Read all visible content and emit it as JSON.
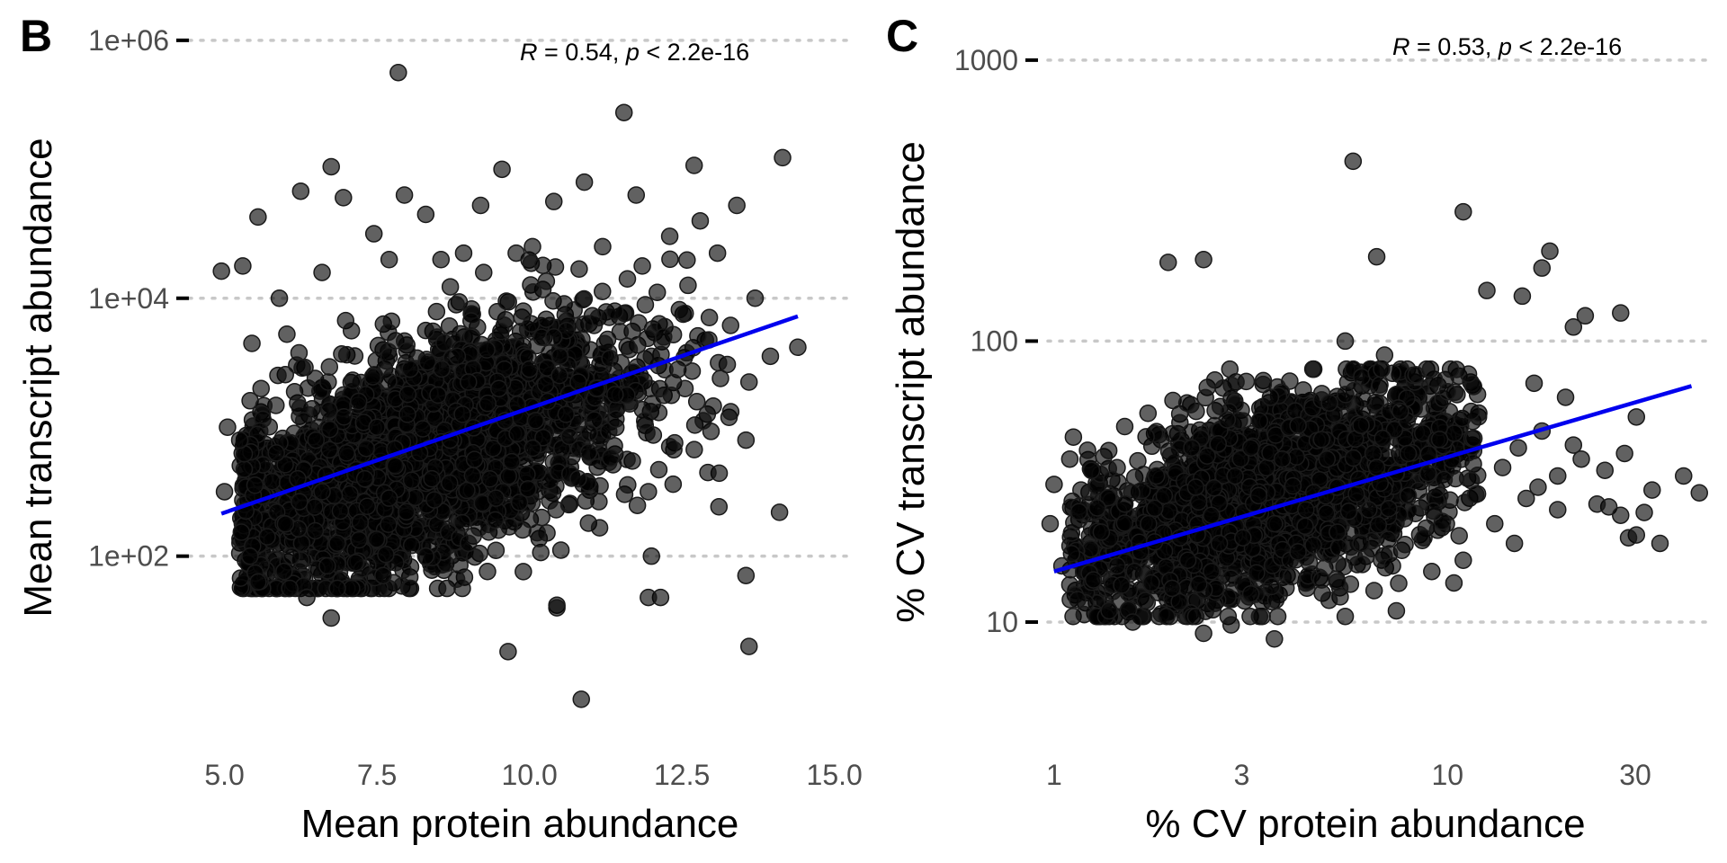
{
  "chart_data": [
    {
      "type": "scatter",
      "panel_tag": "B",
      "title": "",
      "xlabel": "Mean protein abundance",
      "ylabel": "Mean transcript abundance",
      "x_scale": "linear",
      "y_scale": "log10",
      "xlim": [
        4.8,
        15.3
      ],
      "ylim_log10": [
        0.75,
        6.25
      ],
      "x_ticks": [
        5.0,
        7.5,
        10.0,
        12.5,
        15.0
      ],
      "x_tick_labels": [
        "5.0",
        "7.5",
        "10.0",
        "12.5",
        "15.0"
      ],
      "y_ticks_log10": [
        2,
        4,
        6
      ],
      "y_tick_labels": [
        "1e+02",
        "1e+04",
        "1e+06"
      ],
      "grid": "horizontal dotted",
      "annotation": {
        "r_label": "R",
        "r_text": " = 0.54, ",
        "p_label": "p",
        "p_text": " < 2.2e-16"
      },
      "fit_line": {
        "x": [
          4.95,
          14.4
        ],
        "y_log10": [
          2.33,
          3.86
        ],
        "color": "#0000ee"
      },
      "core_cloud_note": "dense overplotted core approx x 5.3-13.5, log10 y 1.9-4.2",
      "points": [
        [
          7.85,
          5.75
        ],
        [
          11.55,
          5.44
        ],
        [
          14.15,
          5.09
        ],
        [
          6.75,
          5.02
        ],
        [
          6.25,
          4.83
        ],
        [
          4.95,
          4.21
        ],
        [
          9.55,
          5.0
        ],
        [
          7.95,
          4.8
        ],
        [
          12.7,
          5.03
        ],
        [
          11.75,
          4.8
        ],
        [
          5.55,
          4.63
        ],
        [
          6.95,
          4.78
        ],
        [
          13.4,
          4.72
        ],
        [
          12.8,
          4.6
        ],
        [
          9.2,
          4.72
        ],
        [
          10.4,
          4.75
        ],
        [
          8.3,
          4.65
        ],
        [
          10.9,
          4.9
        ],
        [
          7.45,
          4.5
        ],
        [
          12.3,
          4.48
        ],
        [
          5.3,
          4.25
        ],
        [
          13.7,
          4.0
        ],
        [
          14.4,
          3.62
        ],
        [
          13.95,
          3.55
        ],
        [
          13.6,
          3.35
        ],
        [
          13.3,
          3.12
        ],
        [
          13.55,
          2.9
        ],
        [
          14.1,
          2.34
        ],
        [
          12.0,
          2.0
        ],
        [
          11.15,
          2.22
        ],
        [
          10.45,
          1.62
        ],
        [
          10.45,
          1.6
        ],
        [
          9.9,
          1.88
        ],
        [
          9.65,
          1.26
        ],
        [
          10.85,
          0.89
        ],
        [
          13.6,
          1.3
        ],
        [
          12.15,
          1.68
        ],
        [
          11.95,
          1.68
        ],
        [
          13.55,
          1.85
        ],
        [
          6.75,
          1.52
        ],
        [
          6.35,
          1.68
        ],
        [
          5.55,
          1.8
        ],
        [
          7.15,
          1.95
        ],
        [
          8.05,
          1.75
        ],
        [
          5.0,
          2.5
        ],
        [
          5.25,
          2.9
        ],
        [
          5.05,
          3.0
        ],
        [
          5.6,
          3.3
        ],
        [
          5.45,
          3.65
        ],
        [
          5.9,
          4.0
        ],
        [
          6.6,
          4.2
        ],
        [
          7.7,
          4.3
        ],
        [
          8.55,
          4.3
        ],
        [
          9.25,
          4.2
        ],
        [
          10.05,
          4.4
        ],
        [
          11.2,
          4.4
        ],
        [
          11.85,
          4.25
        ],
        [
          12.6,
          4.1
        ],
        [
          12.95,
          3.85
        ],
        [
          12.2,
          3.7
        ],
        [
          13.1,
          3.5
        ],
        [
          12.55,
          3.3
        ],
        [
          12.85,
          3.05
        ],
        [
          11.6,
          2.75
        ],
        [
          10.8,
          2.6
        ],
        [
          11.95,
          2.5
        ],
        [
          12.3,
          2.85
        ],
        [
          10.2,
          2.3
        ],
        [
          9.45,
          2.45
        ],
        [
          9.0,
          2.1
        ],
        [
          8.3,
          2.0
        ],
        [
          7.6,
          1.85
        ],
        [
          6.85,
          2.1
        ],
        [
          6.0,
          2.25
        ],
        [
          5.5,
          2.55
        ],
        [
          5.85,
          2.8
        ],
        [
          6.3,
          3.05
        ],
        [
          6.7,
          3.35
        ],
        [
          7.2,
          3.2
        ],
        [
          7.7,
          3.55
        ],
        [
          8.3,
          3.75
        ],
        [
          8.8,
          3.95
        ],
        [
          9.3,
          3.6
        ],
        [
          9.9,
          3.9
        ],
        [
          10.4,
          3.7
        ],
        [
          10.9,
          3.8
        ],
        [
          11.4,
          3.9
        ],
        [
          11.9,
          3.95
        ],
        [
          11.1,
          3.3
        ],
        [
          10.6,
          3.1
        ],
        [
          9.8,
          2.95
        ],
        [
          9.1,
          2.75
        ],
        [
          8.4,
          2.6
        ],
        [
          7.7,
          2.45
        ],
        [
          6.9,
          2.35
        ],
        [
          6.2,
          2.6
        ],
        [
          6.5,
          2.9
        ],
        [
          7.0,
          2.8
        ],
        [
          7.5,
          3.0
        ],
        [
          8.0,
          3.1
        ],
        [
          8.5,
          3.25
        ],
        [
          9.0,
          3.35
        ],
        [
          9.5,
          3.3
        ],
        [
          10.0,
          3.45
        ],
        [
          10.5,
          3.55
        ],
        [
          11.0,
          3.6
        ],
        [
          11.5,
          3.5
        ],
        [
          12.0,
          3.55
        ],
        [
          8.7,
          2.9
        ],
        [
          8.2,
          2.8
        ],
        [
          7.8,
          2.7
        ],
        [
          7.3,
          2.6
        ],
        [
          6.6,
          2.5
        ],
        [
          6.1,
          2.0
        ],
        [
          5.7,
          2.15
        ],
        [
          5.35,
          2.35
        ],
        [
          8.9,
          3.1
        ],
        [
          9.6,
          3.05
        ],
        [
          10.3,
          3.2
        ],
        [
          10.8,
          3.35
        ]
      ]
    },
    {
      "type": "scatter",
      "panel_tag": "C",
      "title": "",
      "xlabel": "% CV protein abundance",
      "ylabel": "% CV transcript abundance",
      "x_scale": "log10",
      "y_scale": "log10",
      "xlim_log10": [
        -0.05,
        1.66
      ],
      "ylim_log10": [
        0.6,
        3.15
      ],
      "x_ticks_log10": [
        0,
        0.4771,
        1,
        1.4771
      ],
      "x_tick_labels": [
        "1",
        "3",
        "10",
        "30"
      ],
      "y_ticks_log10": [
        1,
        2,
        3
      ],
      "y_tick_labels": [
        "10",
        "100",
        "1000"
      ],
      "grid": "horizontal dotted",
      "annotation": {
        "r_label": "R",
        "r_text": " = 0.53, ",
        "p_label": "p",
        "p_text": " < 2.2e-16"
      },
      "fit_line": {
        "x_log10": [
          0,
          1.62
        ],
        "y_log10": [
          1.18,
          1.84
        ],
        "color": "#0000ee"
      },
      "core_cloud_note": "dense overplotted core approx log10 x 0.05-1.05, log10 y 1.05-1.85",
      "points": [
        [
          0.76,
          2.64
        ],
        [
          1.04,
          2.46
        ],
        [
          0.82,
          2.3
        ],
        [
          0.29,
          2.28
        ],
        [
          0.38,
          2.29
        ],
        [
          1.26,
          2.32
        ],
        [
          1.24,
          2.26
        ],
        [
          1.1,
          2.18
        ],
        [
          1.35,
          2.09
        ],
        [
          1.44,
          2.1
        ],
        [
          1.32,
          2.05
        ],
        [
          1.19,
          2.16
        ],
        [
          1.22,
          1.85
        ],
        [
          1.3,
          1.8
        ],
        [
          1.48,
          1.73
        ],
        [
          1.6,
          1.52
        ],
        [
          1.64,
          1.46
        ],
        [
          1.52,
          1.47
        ],
        [
          1.5,
          1.39
        ],
        [
          1.41,
          1.41
        ],
        [
          1.48,
          1.31
        ],
        [
          1.54,
          1.28
        ],
        [
          1.46,
          1.3
        ],
        [
          1.44,
          1.38
        ],
        [
          1.38,
          1.42
        ],
        [
          1.4,
          1.54
        ],
        [
          1.45,
          1.6
        ],
        [
          1.34,
          1.58
        ],
        [
          1.28,
          1.52
        ],
        [
          1.23,
          1.48
        ],
        [
          1.32,
          1.63
        ],
        [
          1.24,
          1.68
        ],
        [
          1.18,
          1.62
        ],
        [
          1.14,
          1.55
        ],
        [
          1.2,
          1.44
        ],
        [
          1.28,
          1.4
        ],
        [
          1.12,
          1.35
        ],
        [
          1.17,
          1.28
        ],
        [
          0.0,
          1.49
        ],
        [
          0.04,
          1.58
        ],
        [
          -0.01,
          1.35
        ],
        [
          0.02,
          1.2
        ],
        [
          0.06,
          1.08
        ],
        [
          0.14,
          1.04
        ],
        [
          0.2,
          1.0
        ],
        [
          0.38,
          0.96
        ],
        [
          0.45,
          0.99
        ],
        [
          0.56,
          0.94
        ],
        [
          0.74,
          1.02
        ],
        [
          0.87,
          1.04
        ],
        [
          0.96,
          1.18
        ],
        [
          1.04,
          1.22
        ],
        [
          0.94,
          1.3
        ],
        [
          0.86,
          1.2
        ],
        [
          0.78,
          1.28
        ],
        [
          0.68,
          1.15
        ],
        [
          0.6,
          1.22
        ],
        [
          0.5,
          1.1
        ],
        [
          0.4,
          1.18
        ],
        [
          0.3,
          1.12
        ],
        [
          0.22,
          1.25
        ],
        [
          0.12,
          1.32
        ],
        [
          0.18,
          1.42
        ],
        [
          0.26,
          1.52
        ],
        [
          0.35,
          1.62
        ],
        [
          0.44,
          1.72
        ],
        [
          0.55,
          1.8
        ],
        [
          0.66,
          1.9
        ],
        [
          0.74,
          2.0
        ],
        [
          0.84,
          1.95
        ],
        [
          0.92,
          1.88
        ],
        [
          1.0,
          1.82
        ],
        [
          1.06,
          1.75
        ],
        [
          0.98,
          1.65
        ],
        [
          0.9,
          1.6
        ],
        [
          0.82,
          1.55
        ],
        [
          0.72,
          1.48
        ],
        [
          0.64,
          1.4
        ],
        [
          0.56,
          1.35
        ],
        [
          0.48,
          1.3
        ],
        [
          0.4,
          1.38
        ],
        [
          0.32,
          1.3
        ],
        [
          0.24,
          1.35
        ],
        [
          0.16,
          1.2
        ],
        [
          0.1,
          1.15
        ],
        [
          0.28,
          1.45
        ],
        [
          0.36,
          1.48
        ],
        [
          0.46,
          1.52
        ],
        [
          0.58,
          1.58
        ],
        [
          0.68,
          1.65
        ],
        [
          0.78,
          1.7
        ],
        [
          0.88,
          1.75
        ],
        [
          0.5,
          1.62
        ],
        [
          0.62,
          1.7
        ],
        [
          0.7,
          1.78
        ],
        [
          0.52,
          1.45
        ],
        [
          0.8,
          1.4
        ],
        [
          0.9,
          1.45
        ],
        [
          0.62,
          1.25
        ],
        [
          0.72,
          1.32
        ],
        [
          0.34,
          1.22
        ],
        [
          0.42,
          1.28
        ]
      ]
    }
  ]
}
